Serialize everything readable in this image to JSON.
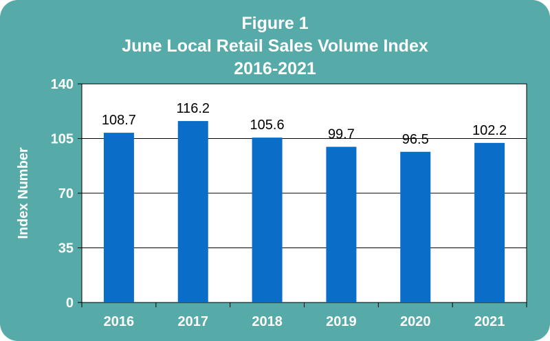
{
  "chart_data": {
    "type": "bar",
    "title": "Figure 1",
    "subtitle": "June Local Retail Sales Volume Index",
    "subtitle2": "2016-2021",
    "xlabel": "",
    "ylabel": "Index Number",
    "categories": [
      "2016",
      "2017",
      "2018",
      "2019",
      "2020",
      "2021"
    ],
    "values": [
      108.7,
      116.2,
      105.6,
      99.7,
      96.5,
      102.2
    ],
    "data_labels": [
      "108.7",
      "116.2",
      "105.6",
      "99.7",
      "96.5",
      "102.2"
    ],
    "ylim": [
      0,
      140
    ],
    "yticks": [
      0,
      35,
      70,
      105,
      140
    ],
    "grid": true,
    "legend": "none",
    "colors": {
      "frame": "#56aaa8",
      "plot_background": "#ffffff",
      "bar": "#0a6ec8"
    }
  }
}
